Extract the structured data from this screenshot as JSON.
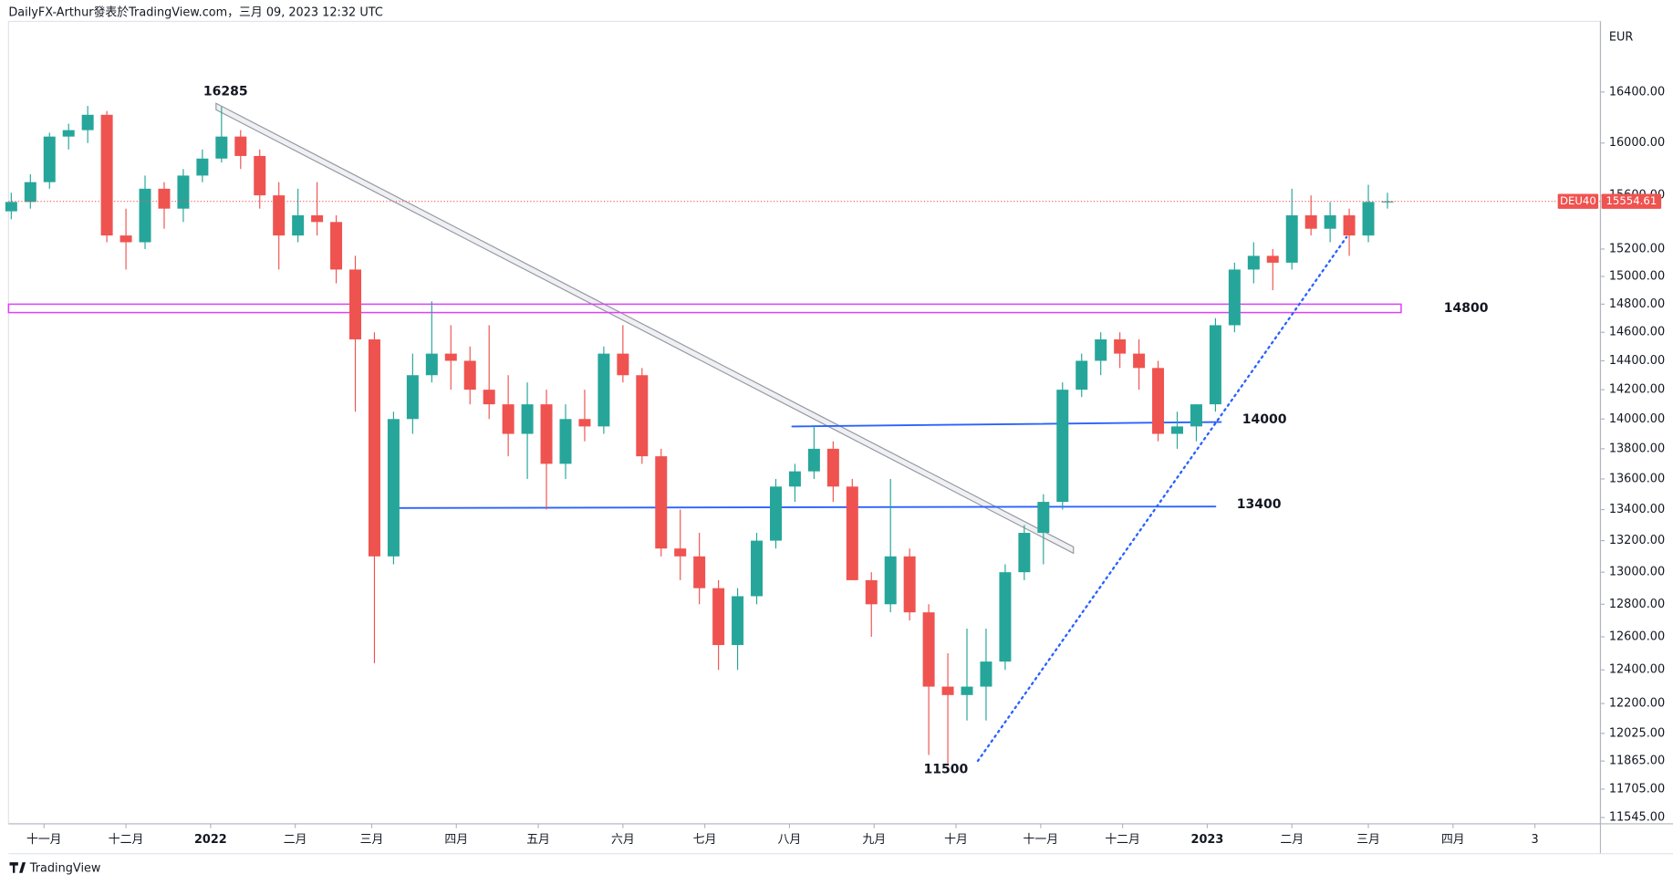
{
  "header": {
    "attribution": "DailyFX-Arthur發表於TradingView.com，三月 09, 2023 12:32 UTC"
  },
  "footer": {
    "brand": "TradingView"
  },
  "chart_data": {
    "type": "candlestick",
    "symbol": "DEU40",
    "currency": "EUR",
    "last_price": 15554.61,
    "up_color": "#26a69a",
    "down_color": "#ef5350",
    "log_scale": true,
    "xlim": [
      -13,
      570
    ],
    "ylim": [
      11510,
      16970
    ],
    "xticks": [
      {
        "value": 0,
        "label": "十一月"
      },
      {
        "value": 30,
        "label": "十二月"
      },
      {
        "value": 61,
        "label": "2022"
      },
      {
        "value": 92,
        "label": "二月"
      },
      {
        "value": 120,
        "label": "三月"
      },
      {
        "value": 151,
        "label": "四月"
      },
      {
        "value": 181,
        "label": "五月"
      },
      {
        "value": 212,
        "label": "六月"
      },
      {
        "value": 242,
        "label": "七月"
      },
      {
        "value": 273,
        "label": "八月"
      },
      {
        "value": 304,
        "label": "九月"
      },
      {
        "value": 334,
        "label": "十月"
      },
      {
        "value": 365,
        "label": "十一月"
      },
      {
        "value": 395,
        "label": "十二月"
      },
      {
        "value": 426,
        "label": "2023"
      },
      {
        "value": 457,
        "label": "二月"
      },
      {
        "value": 485,
        "label": "三月"
      },
      {
        "value": 516,
        "label": "四月"
      },
      {
        "value": 546,
        "label": "3"
      }
    ],
    "yticks": [
      {
        "value": 16400,
        "label": "16400.00"
      },
      {
        "value": 16000,
        "label": "16000.00"
      },
      {
        "value": 15600,
        "label": "15600.00"
      },
      {
        "value": 15200,
        "label": "15200.00"
      },
      {
        "value": 15000,
        "label": "15000.00"
      },
      {
        "value": 14800,
        "label": "14800.00"
      },
      {
        "value": 14600,
        "label": "14600.00"
      },
      {
        "value": 14400,
        "label": "14400.00"
      },
      {
        "value": 14200,
        "label": "14200.00"
      },
      {
        "value": 14000,
        "label": "14000.00"
      },
      {
        "value": 13800,
        "label": "13800.00"
      },
      {
        "value": 13600,
        "label": "13600.00"
      },
      {
        "value": 13400,
        "label": "13400.00"
      },
      {
        "value": 13200,
        "label": "13200.00"
      },
      {
        "value": 13000,
        "label": "13000.00"
      },
      {
        "value": 12800,
        "label": "12800.00"
      },
      {
        "value": 12600,
        "label": "12600.00"
      },
      {
        "value": 12400,
        "label": "12400.00"
      },
      {
        "value": 12200,
        "label": "12200.00"
      },
      {
        "value": 12025,
        "label": "12025.00"
      },
      {
        "value": 11865,
        "label": "11865.00"
      },
      {
        "value": 11705,
        "label": "11705.00"
      },
      {
        "value": 11545,
        "label": "11545.00"
      }
    ],
    "x": [
      -12,
      -5,
      2,
      9,
      16,
      23,
      30,
      37,
      44,
      51,
      58,
      65,
      72,
      79,
      86,
      93,
      100,
      107,
      114,
      121,
      128,
      135,
      142,
      149,
      156,
      163,
      170,
      177,
      184,
      191,
      198,
      205,
      212,
      219,
      226,
      233,
      240,
      247,
      254,
      261,
      268,
      275,
      282,
      289,
      296,
      303,
      310,
      317,
      324,
      331,
      338,
      345,
      352,
      359,
      366,
      373,
      380,
      387,
      394,
      401,
      408,
      415,
      422,
      429,
      436,
      443,
      450,
      457,
      464,
      471,
      478,
      485,
      492
    ],
    "open": [
      15480,
      15550,
      15700,
      16050,
      16100,
      16220,
      15300,
      15250,
      15650,
      15500,
      15750,
      15880,
      16050,
      15900,
      15600,
      15300,
      15450,
      15400,
      15050,
      14550,
      13100,
      14000,
      14300,
      14450,
      14400,
      14200,
      14100,
      13900,
      14100,
      13700,
      14000,
      13950,
      14450,
      14300,
      13750,
      13150,
      13100,
      12900,
      12550,
      12850,
      13200,
      13550,
      13650,
      13800,
      13550,
      12950,
      12800,
      13100,
      12750,
      12300,
      12250,
      12300,
      12450,
      13000,
      13250,
      13450,
      14200,
      14400,
      14550,
      14450,
      14350,
      13900,
      13950,
      14100,
      14650,
      15050,
      15150,
      15100,
      15450,
      15350,
      15450,
      15300,
      15550
    ],
    "high": [
      15620,
      15760,
      16080,
      16150,
      16290,
      16250,
      15500,
      15750,
      15700,
      15800,
      15950,
      16285,
      16100,
      15950,
      15700,
      15650,
      15700,
      15450,
      15150,
      14600,
      14050,
      14450,
      14820,
      14650,
      14500,
      14650,
      14300,
      14250,
      14200,
      14100,
      14200,
      14500,
      14650,
      14350,
      13800,
      13400,
      13250,
      12950,
      12900,
      13250,
      13600,
      13700,
      13950,
      13850,
      13600,
      13000,
      13600,
      13150,
      12800,
      12500,
      12650,
      12650,
      13050,
      13300,
      13500,
      14250,
      14450,
      14600,
      14600,
      14550,
      14400,
      14050,
      14100,
      14700,
      15100,
      15250,
      15200,
      15650,
      15600,
      15550,
      15500,
      15680,
      15620
    ],
    "low": [
      15420,
      15500,
      15650,
      15950,
      16000,
      15250,
      15050,
      15200,
      15350,
      15400,
      15700,
      15850,
      15800,
      15500,
      15050,
      15250,
      15300,
      14950,
      14050,
      12440,
      13050,
      13900,
      14250,
      14200,
      14100,
      14000,
      13750,
      13600,
      13400,
      13600,
      13850,
      13900,
      14250,
      13700,
      13100,
      12950,
      12800,
      12400,
      12400,
      12800,
      13150,
      13450,
      13600,
      13450,
      12950,
      12600,
      12750,
      12700,
      11900,
      11850,
      12100,
      12100,
      12400,
      12950,
      13050,
      13400,
      14150,
      14300,
      14350,
      14200,
      13850,
      13800,
      13850,
      14050,
      14600,
      14950,
      14900,
      15050,
      15300,
      15250,
      15150,
      15250,
      15500
    ],
    "close": [
      15550,
      15700,
      16050,
      16100,
      16220,
      15300,
      15250,
      15650,
      15500,
      15750,
      15880,
      16050,
      15900,
      15600,
      15300,
      15450,
      15400,
      15050,
      14550,
      13100,
      14000,
      14300,
      14450,
      14400,
      14200,
      14100,
      13900,
      14100,
      13700,
      14000,
      13950,
      14450,
      14300,
      13750,
      13150,
      13100,
      12900,
      12550,
      12850,
      13200,
      13550,
      13650,
      13800,
      13550,
      12950,
      12800,
      13100,
      12750,
      12300,
      12250,
      12300,
      12450,
      13000,
      13250,
      13450,
      14200,
      14400,
      14550,
      14450,
      14350,
      13900,
      13950,
      14100,
      14650,
      15050,
      15150,
      15100,
      15450,
      15350,
      15450,
      15300,
      15550,
      15554.61
    ],
    "drawings": [
      {
        "kind": "channel",
        "label": "16285",
        "x": [
          63,
          377
        ],
        "y": [
          16285,
          13140
        ],
        "color": "#9598a1"
      },
      {
        "kind": "band",
        "label": "14800",
        "x": [
          -13,
          497
        ],
        "y": [
          14800,
          14740
        ],
        "color": "#e040fb"
      },
      {
        "kind": "line",
        "label": "14000",
        "x": [
          274,
          431
        ],
        "y": [
          13950,
          13980
        ],
        "color": "#2962ff"
      },
      {
        "kind": "line",
        "label": "13400",
        "x": [
          129,
          429
        ],
        "y": [
          13410,
          13420
        ],
        "color": "#2962ff"
      },
      {
        "kind": "dotted",
        "label": "11500",
        "x": [
          342,
          477
        ],
        "y": [
          11866,
          15288
        ],
        "color": "#2962ff"
      }
    ]
  }
}
